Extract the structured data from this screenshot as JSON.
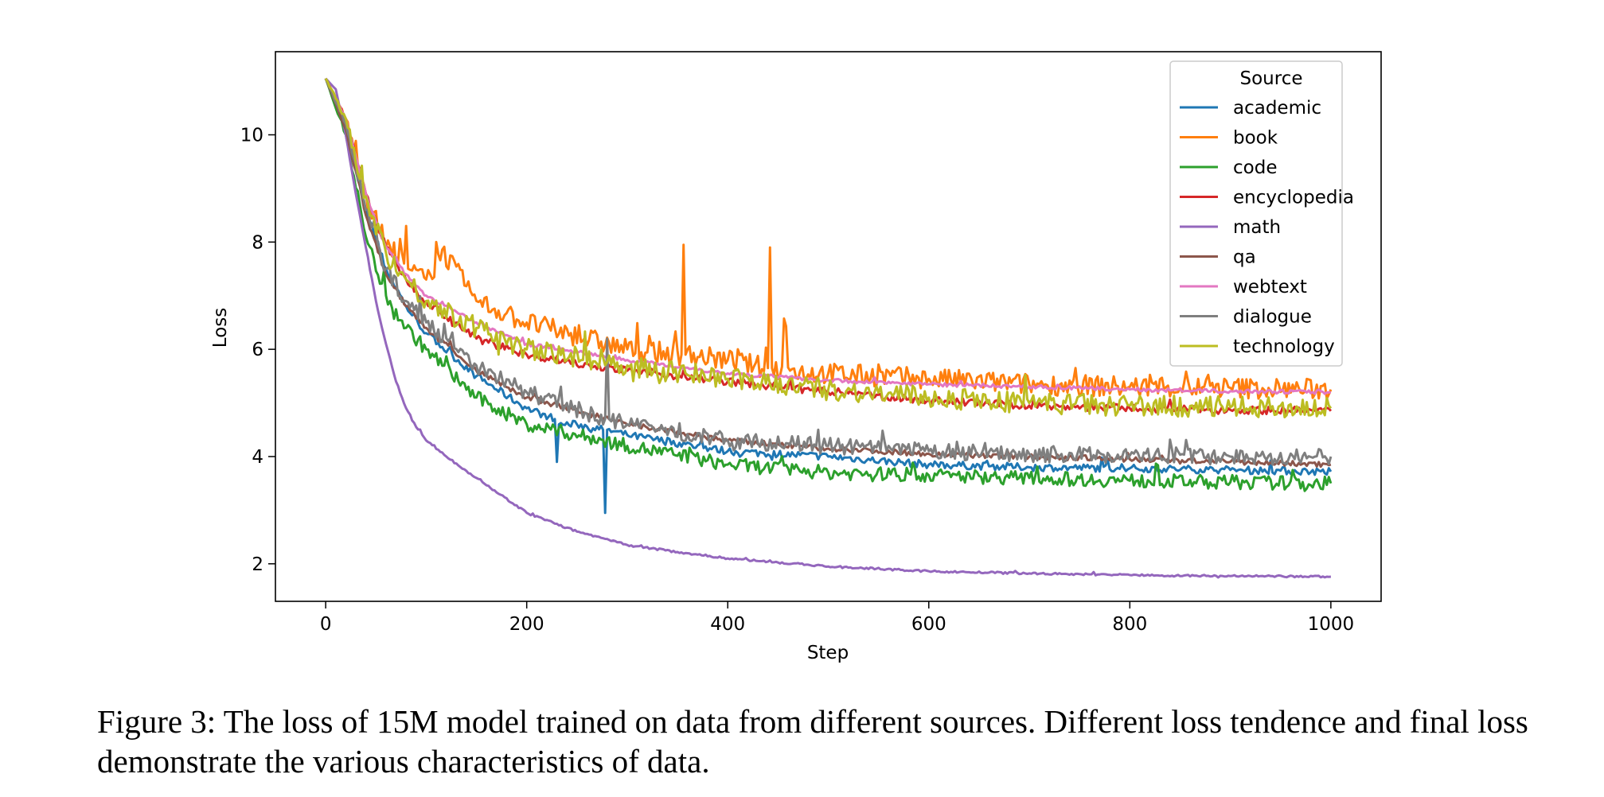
{
  "caption": "Figure 3: The loss of 15M model trained on data from different sources. Different loss tendence and final loss demonstrate the various characteristics of data.",
  "chart_data": {
    "type": "line",
    "title": "",
    "xlabel": "Step",
    "ylabel": "Loss",
    "xlim": [
      -50,
      1050
    ],
    "ylim": [
      1.3,
      11.55
    ],
    "xticks": [
      0,
      200,
      400,
      600,
      800,
      1000
    ],
    "yticks": [
      2,
      4,
      6,
      8,
      10
    ],
    "grid": false,
    "legend": {
      "title": "Source",
      "placement": "top-right"
    },
    "series": [
      {
        "name": "academic",
        "color": "#1f77b4",
        "x": [
          0,
          20,
          40,
          60,
          80,
          100,
          150,
          200,
          228,
          230,
          232,
          250,
          276,
          278,
          280,
          300,
          400,
          500,
          600,
          700,
          800,
          900,
          1000
        ],
        "y": [
          11.05,
          10.2,
          8.6,
          7.5,
          6.8,
          6.3,
          5.5,
          4.9,
          4.7,
          3.9,
          4.6,
          4.6,
          4.5,
          2.95,
          4.5,
          4.4,
          4.1,
          4.0,
          3.85,
          3.8,
          3.78,
          3.75,
          3.72
        ]
      },
      {
        "name": "book",
        "color": "#ff7f0e",
        "x": [
          0,
          20,
          40,
          60,
          78,
          80,
          82,
          100,
          107,
          110,
          150,
          200,
          300,
          354,
          356,
          358,
          400,
          440,
          442,
          444,
          455,
          457,
          459,
          500,
          600,
          700,
          800,
          900,
          1000
        ],
        "y": [
          11.05,
          10.3,
          8.9,
          7.9,
          7.6,
          8.3,
          7.5,
          7.3,
          7.3,
          8.0,
          6.9,
          6.5,
          6.0,
          5.9,
          7.95,
          5.9,
          5.8,
          5.65,
          7.9,
          5.65,
          5.6,
          7.45,
          5.6,
          5.55,
          5.45,
          5.35,
          5.3,
          5.28,
          5.25
        ]
      },
      {
        "name": "code",
        "color": "#2ca02c",
        "x": [
          0,
          20,
          40,
          60,
          80,
          100,
          150,
          200,
          300,
          400,
          500,
          600,
          700,
          800,
          900,
          1000
        ],
        "y": [
          11.05,
          10.0,
          8.1,
          7.0,
          6.4,
          6.0,
          5.1,
          4.6,
          4.2,
          3.85,
          3.7,
          3.65,
          3.6,
          3.55,
          3.52,
          3.5
        ]
      },
      {
        "name": "encyclopedia",
        "color": "#d62728",
        "x": [
          0,
          20,
          40,
          60,
          80,
          100,
          150,
          200,
          300,
          400,
          500,
          600,
          700,
          800,
          900,
          1000
        ],
        "y": [
          11.05,
          10.3,
          8.9,
          7.9,
          7.3,
          6.9,
          6.2,
          5.9,
          5.6,
          5.4,
          5.2,
          5.05,
          4.95,
          4.9,
          4.87,
          4.85
        ]
      },
      {
        "name": "math",
        "color": "#9467bd",
        "x": [
          0,
          10,
          20,
          30,
          40,
          50,
          60,
          70,
          80,
          90,
          100,
          120,
          150,
          200,
          250,
          300,
          350,
          400,
          500,
          600,
          700,
          800,
          900,
          1000
        ],
        "y": [
          11.05,
          10.85,
          10.0,
          8.9,
          7.9,
          6.9,
          6.1,
          5.4,
          4.9,
          4.55,
          4.3,
          4.0,
          3.6,
          2.95,
          2.6,
          2.35,
          2.22,
          2.1,
          1.95,
          1.86,
          1.82,
          1.79,
          1.77,
          1.76
        ]
      },
      {
        "name": "qa",
        "color": "#8c564b",
        "x": [
          0,
          20,
          40,
          60,
          80,
          100,
          150,
          200,
          300,
          400,
          500,
          600,
          700,
          800,
          900,
          1000
        ],
        "y": [
          11.05,
          10.1,
          8.5,
          7.4,
          6.8,
          6.4,
          5.6,
          5.1,
          4.6,
          4.3,
          4.15,
          4.05,
          4.0,
          3.95,
          3.9,
          3.85
        ]
      },
      {
        "name": "webtext",
        "color": "#e377c2",
        "x": [
          0,
          20,
          40,
          60,
          80,
          100,
          150,
          200,
          300,
          400,
          500,
          600,
          700,
          800,
          900,
          1000
        ],
        "y": [
          11.05,
          10.3,
          8.9,
          7.9,
          7.4,
          7.0,
          6.5,
          6.1,
          5.8,
          5.55,
          5.42,
          5.35,
          5.3,
          5.25,
          5.22,
          5.2
        ]
      },
      {
        "name": "dialogue",
        "color": "#7f7f7f",
        "x": [
          0,
          20,
          40,
          60,
          80,
          100,
          150,
          200,
          278,
          280,
          282,
          300,
          400,
          500,
          600,
          700,
          800,
          900,
          1000
        ],
        "y": [
          11.05,
          10.2,
          8.6,
          7.5,
          6.9,
          6.5,
          5.7,
          5.2,
          4.7,
          6.2,
          4.7,
          4.6,
          4.3,
          4.2,
          4.1,
          4.05,
          4.02,
          4.0,
          4.0
        ]
      },
      {
        "name": "technology",
        "color": "#bcbd22",
        "x": [
          0,
          20,
          40,
          60,
          80,
          100,
          150,
          200,
          300,
          400,
          500,
          600,
          700,
          800,
          900,
          1000
        ],
        "y": [
          11.05,
          10.3,
          8.85,
          7.8,
          7.3,
          6.9,
          6.4,
          6.0,
          5.7,
          5.45,
          5.25,
          5.1,
          5.0,
          4.95,
          4.92,
          4.9
        ]
      }
    ]
  }
}
